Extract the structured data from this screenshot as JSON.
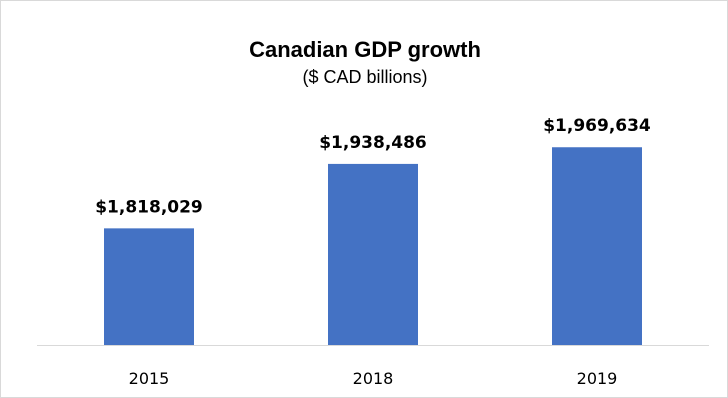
{
  "chart_data": {
    "type": "bar",
    "title": "Canadian GDP growth",
    "subtitle": "($ CAD billions)",
    "categories": [
      "2015",
      "2018",
      "2019"
    ],
    "values": [
      1818029,
      1938486,
      1969634
    ],
    "data_labels": [
      "$1,818,029",
      "$1,938,486",
      "$1,969,634"
    ],
    "ylim": [
      1600000,
      2000000
    ],
    "xlabel": "",
    "ylabel": "",
    "grid": false,
    "legend": "none",
    "bar_color": "#4472c4",
    "axis_color": "#d9d9d9"
  }
}
